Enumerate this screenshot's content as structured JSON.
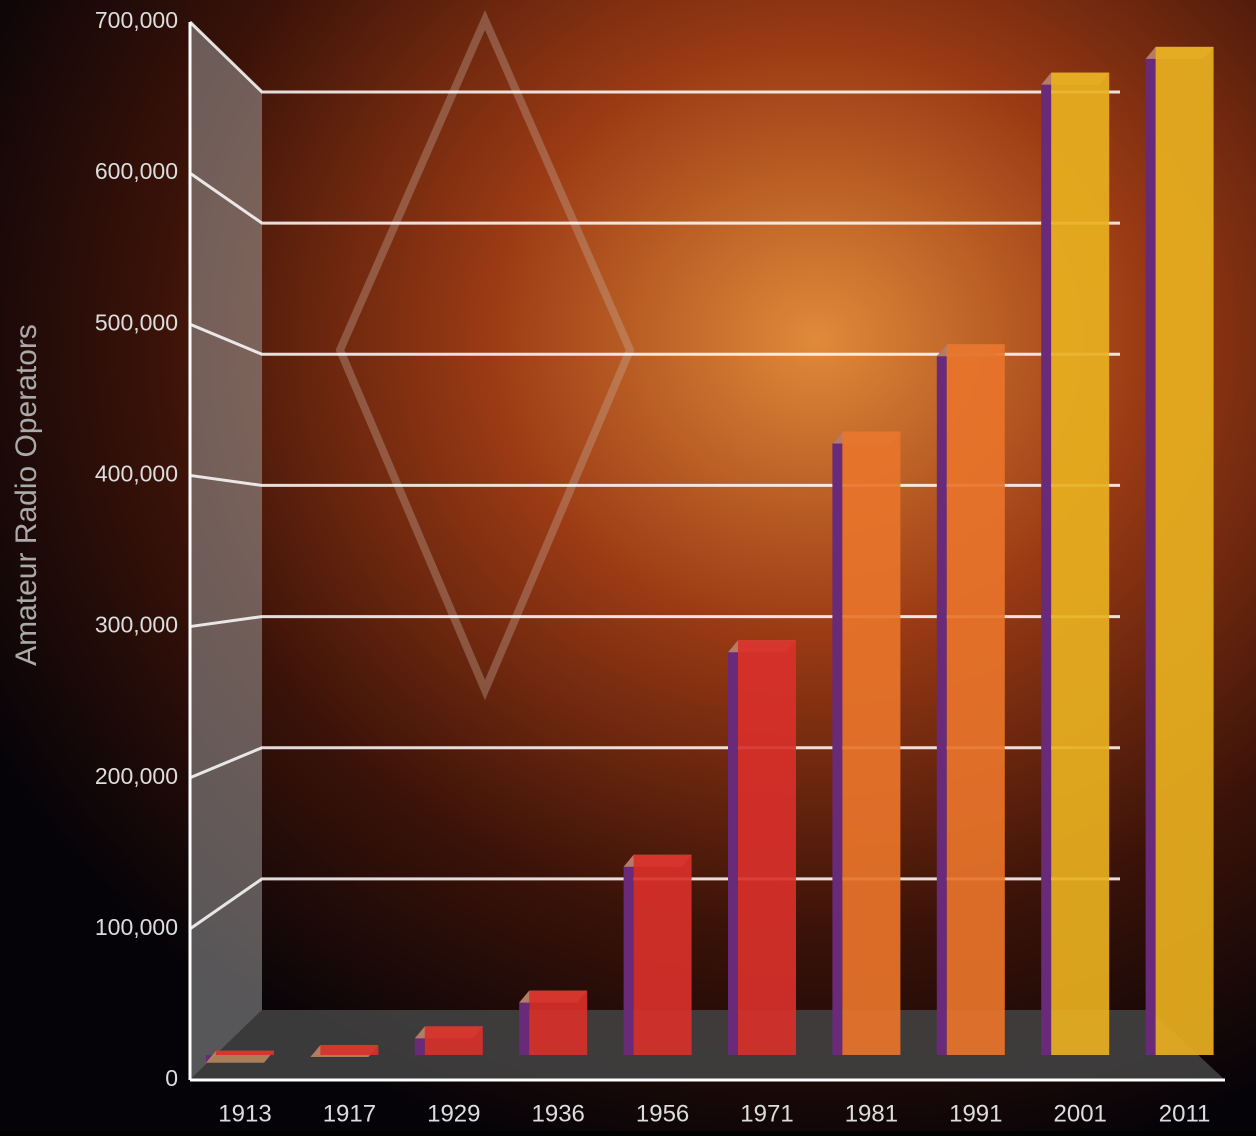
{
  "chart_data": {
    "type": "bar3d",
    "y_label": "Amateur Radio Operators",
    "categories": [
      "1913",
      "1917",
      "1929",
      "1936",
      "1956",
      "1971",
      "1981",
      "1991",
      "2001",
      "2011"
    ],
    "values": [
      3000,
      7000,
      20000,
      45000,
      140000,
      290000,
      436000,
      497000,
      687000,
      705000
    ],
    "colors": [
      "#d8302a",
      "#d8302a",
      "#d8302a",
      "#d8302a",
      "#d8302a",
      "#d8302a",
      "#e8742a",
      "#e8742a",
      "#e8b020",
      "#e8b020"
    ],
    "ylim": [
      0,
      700000
    ],
    "yticks": [
      0,
      {
        "value": 100000,
        "label": "100,000"
      },
      {
        "value": 200000,
        "label": "200,000"
      },
      {
        "value": 300000,
        "label": "300,000"
      },
      {
        "value": 400000,
        "label": "400,000"
      },
      {
        "value": 500000,
        "label": "500,000"
      },
      {
        "value": 600000,
        "label": "600,000"
      },
      {
        "value": 700000,
        "label": "700,000"
      }
    ],
    "grid": true
  }
}
